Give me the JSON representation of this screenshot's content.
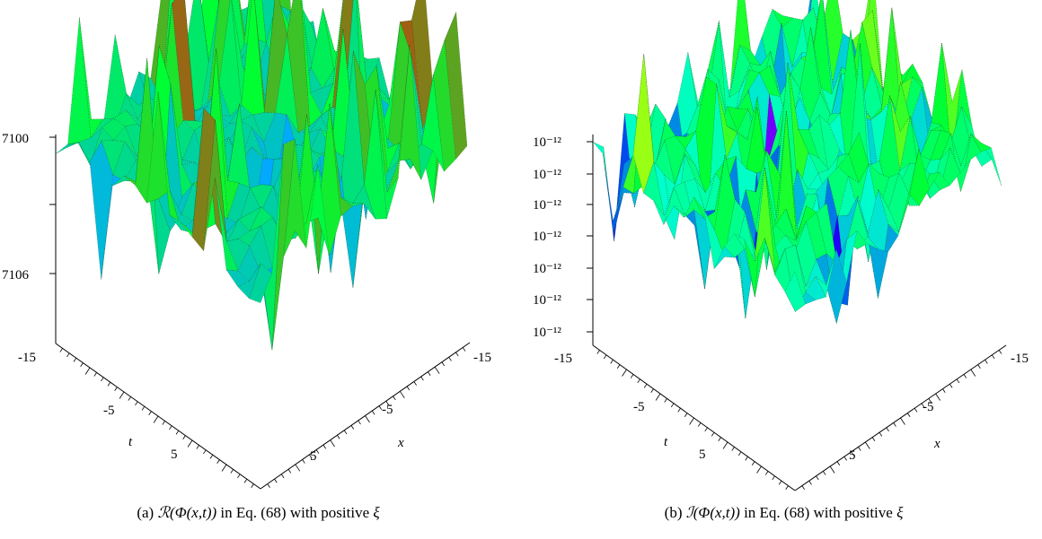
{
  "chart_data": [
    {
      "type": "surface",
      "caption": {
        "label": "(a)",
        "expression": "ℛ(Φ(x,t))",
        "suffix": "in Eq. (68) with positive",
        "symbol": "ξ"
      },
      "x_axis_label": "x",
      "t_axis_label": "t",
      "x_ticks": [
        "-15",
        "-5",
        "5"
      ],
      "t_ticks": [
        "-15",
        "-5",
        "5"
      ],
      "z_ticks": [
        "7100",
        "7106"
      ],
      "z_ticks_visible_prefix": "'",
      "xlim": [
        -15,
        15
      ],
      "tlim": [
        -15,
        15
      ],
      "colormap": [
        "#ff0000",
        "#00ff00",
        "#00aaff",
        "#ff00ff"
      ]
    },
    {
      "type": "surface",
      "caption": {
        "label": "(b)",
        "expression": "ℐ(Φ(x,t))",
        "suffix": "in Eq. (68) with positive",
        "symbol": "ξ"
      },
      "x_axis_label": "x",
      "t_axis_label": "t",
      "x_ticks": [
        "-15",
        "-5",
        "5"
      ],
      "t_ticks": [
        "-15",
        "-5",
        "5"
      ],
      "z_ticks": [
        "10⁻¹²",
        "10⁻¹²",
        "10⁻¹²",
        "10⁻¹²",
        "10⁻¹²",
        "10⁻¹²",
        "10⁻¹²"
      ],
      "xlim": [
        -15,
        15
      ],
      "tlim": [
        -15,
        15
      ],
      "colormap": [
        "#ff0000",
        "#ffff00",
        "#00ff00",
        "#00ffff",
        "#0000ff",
        "#ff00ff"
      ]
    }
  ]
}
